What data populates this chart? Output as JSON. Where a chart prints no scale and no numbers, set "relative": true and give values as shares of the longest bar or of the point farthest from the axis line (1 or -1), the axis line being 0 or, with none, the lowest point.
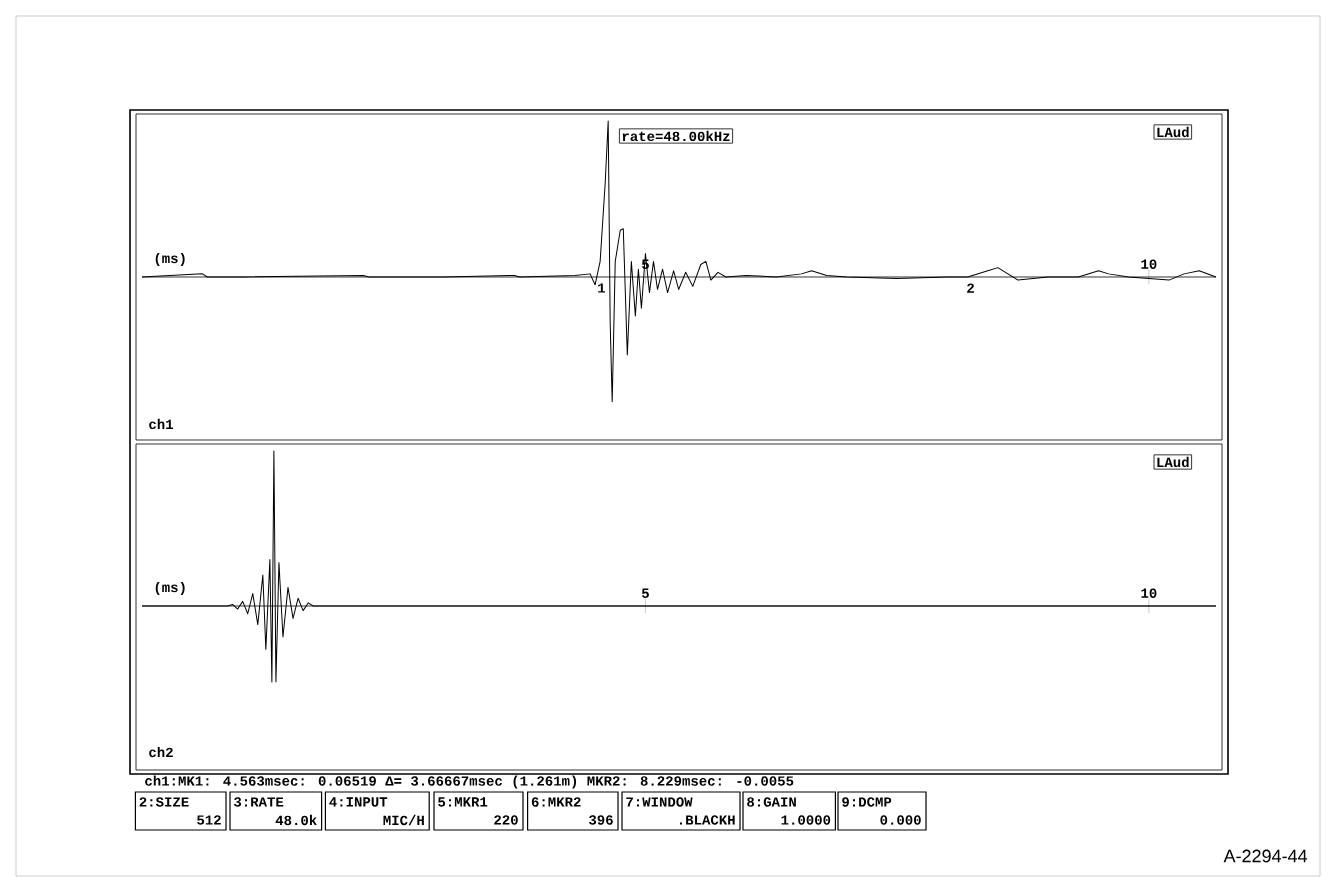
{
  "chart_data": [
    {
      "type": "line",
      "xlabel": "(ms)",
      "relative": true,
      "xlim": [
        0,
        10.667
      ],
      "xticks": [
        5,
        10
      ],
      "series": [
        {
          "color": "#000000",
          "x": [
            0,
            0.6,
            0.65,
            1.0,
            2.2,
            2.25,
            3.0,
            3.7,
            3.75,
            4.3,
            4.45,
            4.5,
            4.55,
            4.6,
            4.63,
            4.65,
            4.67,
            4.7,
            4.75,
            4.78,
            4.82,
            4.86,
            4.9,
            4.93,
            4.96,
            5.0,
            5.04,
            5.08,
            5.12,
            5.17,
            5.22,
            5.28,
            5.33,
            5.4,
            5.47,
            5.55,
            5.6,
            5.65,
            5.72,
            5.8,
            6.0,
            6.3,
            6.55,
            6.65,
            6.8,
            7.0,
            7.5,
            8.0,
            8.2,
            8.4,
            8.5,
            8.6,
            8.7,
            9.0,
            9.3,
            9.5,
            9.6,
            9.8,
            10.0,
            10.2,
            10.35,
            10.5,
            10.667
          ],
          "values": [
            0,
            0.02,
            0,
            0,
            0.01,
            0,
            0,
            0.01,
            0,
            0.01,
            0.02,
            -0.05,
            0.1,
            0.6,
            1.0,
            -0.3,
            -0.8,
            0.1,
            0.3,
            0.31,
            -0.5,
            0.1,
            -0.25,
            0.05,
            -0.2,
            0.15,
            -0.1,
            0.1,
            -0.08,
            0.05,
            -0.1,
            0.04,
            -0.08,
            0.03,
            -0.06,
            0.08,
            0.1,
            -0.02,
            0.03,
            0,
            0.01,
            0,
            0.02,
            0.04,
            0.01,
            0,
            -0.01,
            0,
            0,
            0.04,
            0.06,
            0.02,
            -0.02,
            0,
            0,
            0.04,
            0.02,
            0,
            -0.01,
            -0.02,
            0.02,
            0.04,
            0
          ]
        }
      ],
      "annotations": [
        "rate=48.00kHz",
        "LAud",
        "ch1",
        {
          "text": "1",
          "x": 4.563,
          "y": 0
        },
        {
          "text": "2",
          "x": 8.229,
          "y": 0
        }
      ]
    },
    {
      "type": "line",
      "xlabel": "(ms)",
      "relative": true,
      "xlim": [
        0,
        10.667
      ],
      "xticks": [
        5,
        10
      ],
      "series": [
        {
          "color": "#000000",
          "x": [
            0,
            0.85,
            0.9,
            0.95,
            1.0,
            1.05,
            1.1,
            1.15,
            1.2,
            1.23,
            1.27,
            1.29,
            1.31,
            1.33,
            1.36,
            1.4,
            1.45,
            1.5,
            1.55,
            1.6,
            1.65,
            1.7,
            10.667
          ],
          "values": [
            0,
            0,
            0.01,
            -0.02,
            0.03,
            -0.05,
            0.08,
            -0.12,
            0.2,
            -0.28,
            0.3,
            -0.49,
            1.0,
            -0.49,
            0.28,
            -0.2,
            0.12,
            -0.08,
            0.05,
            -0.03,
            0.02,
            0,
            0
          ]
        }
      ],
      "annotations": [
        "LAud",
        "ch2",
        "ch1:MK1: 4.563msec: 0.06519  Δ= 3.66667msec (1.261m)  MKR2: 8.229msec: -0.0055",
        "2:SIZE",
        "512",
        "3:RATE",
        "48.0k",
        "4:INPUT",
        "MIC/H",
        "5:MKR1",
        "220",
        "6:MKR2",
        "396",
        "7:WINDOW",
        ".BLACKH",
        "8:GAIN",
        "1.0000",
        "9:DCMP",
        "0.000",
        "A-2294-44"
      ]
    }
  ]
}
